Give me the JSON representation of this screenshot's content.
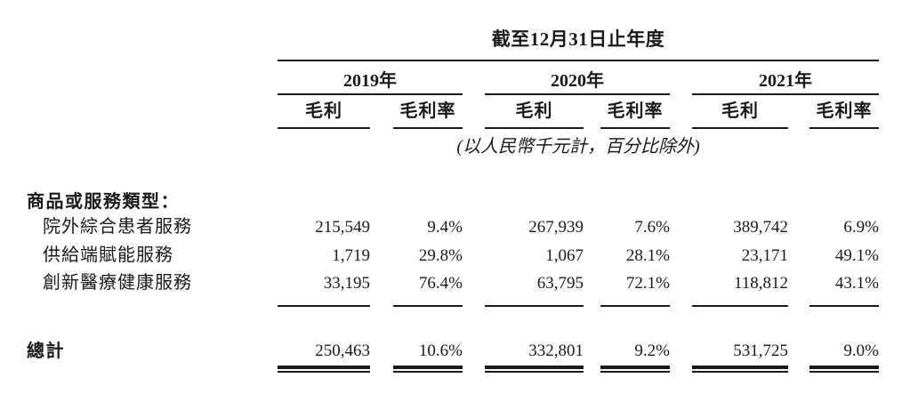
{
  "table": {
    "title": "截至12月31日止年度",
    "units_note": "(以人民幣千元計，百分比除外)",
    "year_groups": [
      {
        "label": "2019年"
      },
      {
        "label": "2020年"
      },
      {
        "label": "2021年"
      }
    ],
    "col_headers": {
      "gross_profit": "毛利",
      "gross_margin": "毛利率"
    },
    "section_header": "商品或服務類型：",
    "rows": [
      {
        "label": "院外綜合患者服務",
        "values": [
          "215,549",
          "9.4%",
          "267,939",
          "7.6%",
          "389,742",
          "6.9%"
        ]
      },
      {
        "label": "供給端賦能服務",
        "values": [
          "1,719",
          "29.8%",
          "1,067",
          "28.1%",
          "23,171",
          "49.1%"
        ]
      },
      {
        "label": "創新醫療健康服務",
        "values": [
          "33,195",
          "76.4%",
          "63,795",
          "72.1%",
          "118,812",
          "43.1%"
        ]
      }
    ],
    "total": {
      "label": "總計",
      "values": [
        "250,463",
        "10.6%",
        "332,801",
        "9.2%",
        "531,725",
        "9.0%"
      ]
    }
  },
  "colors": {
    "background": "#ffffff",
    "text": "#1a1a1a",
    "rule": "#1a1a1a"
  }
}
